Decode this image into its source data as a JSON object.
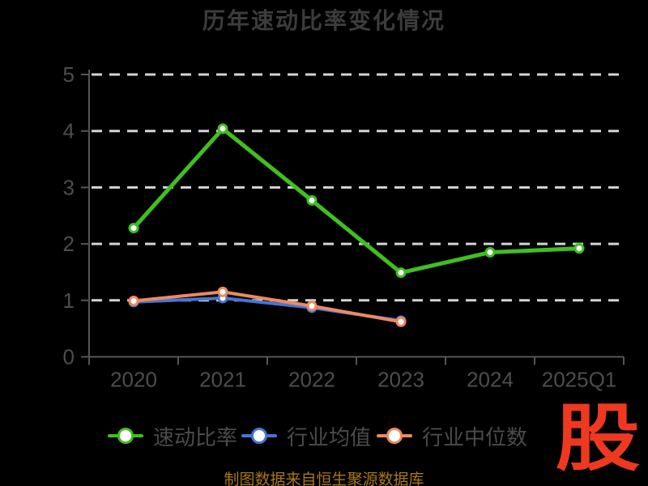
{
  "chart_data": {
    "type": "line",
    "title": "历年速动比率变化情况",
    "categories": [
      "2020",
      "2021",
      "2022",
      "2023",
      "2024",
      "2025Q1"
    ],
    "series": [
      {
        "name": "速动比率",
        "color": "#3fc01e",
        "values": [
          2.28,
          4.04,
          2.77,
          1.49,
          1.85,
          1.92
        ]
      },
      {
        "name": "行业均值",
        "color": "#4575d5",
        "values": [
          0.97,
          1.04,
          0.87,
          0.64,
          null,
          null
        ]
      },
      {
        "name": "行业中位数",
        "color": "#ee8960",
        "values": [
          0.99,
          1.15,
          0.9,
          0.62,
          null,
          null
        ]
      }
    ],
    "ylim": [
      0,
      5
    ],
    "yticks": [
      0,
      1,
      2,
      3,
      4,
      5
    ],
    "grid": "horizontal-dashed",
    "legend_position": "bottom"
  },
  "footnote": "制图数据来自恒生聚源数据库",
  "logo": {
    "text": "股",
    "color": "#ee3920"
  },
  "colors": {
    "background": "#000000",
    "axis": "#555555",
    "grid": "#d4d4d4",
    "label": "#4d4d4d",
    "title": "#3c3c3c",
    "footnote": "#aa7812"
  },
  "legend_layout": [
    133,
    298,
    465
  ]
}
